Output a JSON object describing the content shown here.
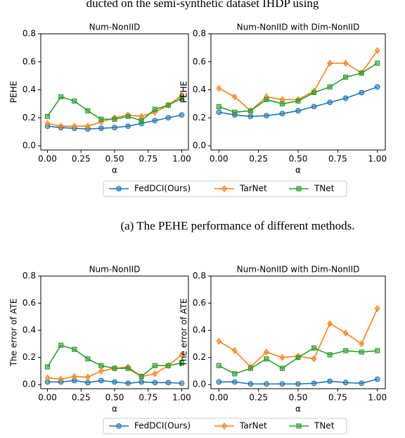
{
  "header_text": "ducted on the semi-synthetic dataset IHDP using",
  "caption_a": "(a)  The PEHE performance of different methods.",
  "chart_data": [
    {
      "type": "line",
      "title": "Num-NonIID",
      "xlabel": "α",
      "ylabel": "PEHE",
      "legend": true,
      "x": [
        0,
        0.1,
        0.2,
        0.3,
        0.4,
        0.5,
        0.6,
        0.7,
        0.8,
        0.9,
        1.0
      ],
      "xlim": [
        -0.05,
        1.05
      ],
      "ylim": [
        -0.03,
        0.8
      ],
      "xticks": [
        {
          "value": 0,
          "label": "0.00"
        },
        0.25,
        {
          "value": 0.5,
          "label": "0.50"
        },
        0.75,
        {
          "value": 1,
          "label": "1.00"
        }
      ],
      "yticks": [
        {
          "value": 0,
          "label": "0.0"
        },
        0.2,
        0.4,
        0.6,
        0.8
      ],
      "series": [
        {
          "name": "FedDCI(Ours)",
          "color": "#1f77b4",
          "marker": "circle",
          "values": [
            0.14,
            0.13,
            0.125,
            0.12,
            0.125,
            0.13,
            0.14,
            0.16,
            0.18,
            0.2,
            0.22
          ]
        },
        {
          "name": "TarNet",
          "color": "#ff7f0e",
          "marker": "diamond",
          "values": [
            0.16,
            0.14,
            0.14,
            0.14,
            0.17,
            0.2,
            0.22,
            0.21,
            0.24,
            0.29,
            0.36
          ]
        },
        {
          "name": "TNet",
          "color": "#2ca02c",
          "marker": "square",
          "values": [
            0.21,
            0.35,
            0.32,
            0.25,
            0.19,
            0.19,
            0.21,
            0.18,
            0.26,
            0.29,
            0.34
          ]
        }
      ]
    },
    {
      "type": "line",
      "title": "Num-NonIID with Dim-NonIID",
      "xlabel": "α",
      "ylabel": "PEHE",
      "x": [
        0,
        0.1,
        0.2,
        0.3,
        0.4,
        0.5,
        0.6,
        0.7,
        0.8,
        0.9,
        1.0
      ],
      "xlim": [
        -0.05,
        1.05
      ],
      "ylim": [
        -0.03,
        0.8
      ],
      "xticks": [
        {
          "value": 0,
          "label": "0.00"
        },
        0.25,
        {
          "value": 0.5,
          "label": "0.50"
        },
        0.75,
        {
          "value": 1,
          "label": "1.00"
        }
      ],
      "yticks": [
        {
          "value": 0,
          "label": "0.0"
        },
        0.2,
        0.4,
        0.6,
        0.8
      ],
      "series": [
        {
          "color": "#1f77b4",
          "marker": "circle",
          "values": [
            0.24,
            0.22,
            0.21,
            0.215,
            0.23,
            0.25,
            0.28,
            0.31,
            0.34,
            0.38,
            0.42
          ]
        },
        {
          "color": "#ff7f0e",
          "marker": "diamond",
          "values": [
            0.41,
            0.35,
            0.25,
            0.35,
            0.33,
            0.33,
            0.39,
            0.59,
            0.59,
            0.52,
            0.68
          ]
        },
        {
          "color": "#2ca02c",
          "marker": "square",
          "values": [
            0.28,
            0.24,
            0.25,
            0.33,
            0.3,
            0.32,
            0.38,
            0.42,
            0.49,
            0.52,
            0.59
          ]
        }
      ]
    },
    {
      "type": "line",
      "title": "Num-NonIID",
      "xlabel": "α",
      "ylabel": "The error of ATE",
      "legend": true,
      "x": [
        0,
        0.1,
        0.2,
        0.3,
        0.4,
        0.5,
        0.6,
        0.7,
        0.8,
        0.9,
        1.0
      ],
      "xlim": [
        -0.05,
        1.05
      ],
      "ylim": [
        -0.03,
        0.8
      ],
      "xticks": [
        {
          "value": 0,
          "label": "0.00"
        },
        0.25,
        {
          "value": 0.5,
          "label": "0.50"
        },
        0.75,
        {
          "value": 1,
          "label": "1.00"
        }
      ],
      "yticks": [
        {
          "value": 0,
          "label": "0.0"
        },
        0.2,
        0.4,
        0.6,
        0.8
      ],
      "series": [
        {
          "name": "FedDCI(Ours)",
          "color": "#1f77b4",
          "marker": "circle",
          "values": [
            0.02,
            0.02,
            0.03,
            0.015,
            0.03,
            0.02,
            0.01,
            0.02,
            0.015,
            0.015,
            0.01
          ]
        },
        {
          "name": "TarNet",
          "color": "#ff7f0e",
          "marker": "diamond",
          "values": [
            0.05,
            0.04,
            0.06,
            0.055,
            0.1,
            0.12,
            0.13,
            0.06,
            0.08,
            0.14,
            0.22
          ]
        },
        {
          "name": "TNet",
          "color": "#2ca02c",
          "marker": "square",
          "values": [
            0.13,
            0.29,
            0.26,
            0.19,
            0.14,
            0.12,
            0.12,
            0.06,
            0.14,
            0.14,
            0.16
          ]
        }
      ]
    },
    {
      "type": "line",
      "title": "Num-NonIID with Dim-NonIID",
      "xlabel": "α",
      "ylabel": "The error of ATE",
      "x": [
        0,
        0.1,
        0.2,
        0.3,
        0.4,
        0.5,
        0.6,
        0.7,
        0.8,
        0.9,
        1.0
      ],
      "xlim": [
        -0.05,
        1.05
      ],
      "ylim": [
        -0.03,
        0.8
      ],
      "xticks": [
        {
          "value": 0,
          "label": "0.00"
        },
        0.25,
        {
          "value": 0.5,
          "label": "0.50"
        },
        0.75,
        {
          "value": 1,
          "label": "1.00"
        }
      ],
      "yticks": [
        {
          "value": 0,
          "label": "0.0"
        },
        0.2,
        0.4,
        0.6,
        0.8
      ],
      "series": [
        {
          "color": "#1f77b4",
          "marker": "circle",
          "values": [
            0.02,
            0.02,
            0.005,
            0.005,
            0.005,
            0.005,
            0.01,
            0.025,
            0.015,
            0.01,
            0.04
          ]
        },
        {
          "color": "#ff7f0e",
          "marker": "diamond",
          "values": [
            0.32,
            0.25,
            0.13,
            0.24,
            0.2,
            0.21,
            0.19,
            0.45,
            0.38,
            0.3,
            0.56
          ]
        },
        {
          "color": "#2ca02c",
          "marker": "square",
          "values": [
            0.14,
            0.08,
            0.12,
            0.19,
            0.12,
            0.2,
            0.27,
            0.22,
            0.25,
            0.24,
            0.25
          ]
        }
      ]
    }
  ]
}
